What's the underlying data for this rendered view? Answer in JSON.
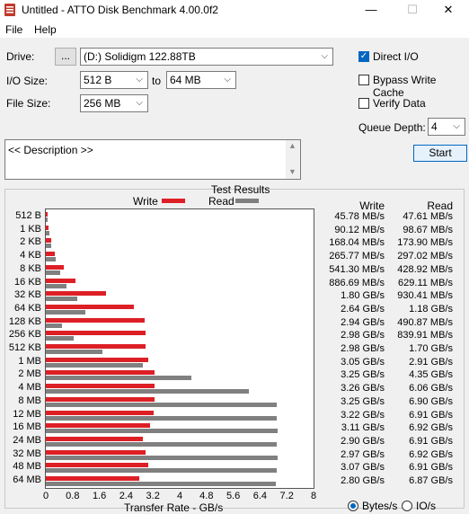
{
  "window": {
    "title": "Untitled - ATTO Disk Benchmark 4.00.0f2",
    "minimize_symbol": "—",
    "maximize_symbol": "☐",
    "close_symbol": "✕"
  },
  "menu": [
    "File",
    "Help"
  ],
  "drive": {
    "label": "Drive:",
    "browse_label": "...",
    "value": "(D:) Solidigm 122.88TB"
  },
  "io_size": {
    "label": "I/O Size:",
    "from": "512 B",
    "to_label": "to",
    "to": "64 MB"
  },
  "file_size": {
    "label": "File Size:",
    "value": "256 MB"
  },
  "options": {
    "direct_io": {
      "label": "Direct I/O",
      "checked": true
    },
    "bypass_write_cache": {
      "label": "Bypass Write Cache",
      "checked": false
    },
    "verify_data": {
      "label": "Verify Data",
      "checked": false
    },
    "queue_depth_label": "Queue Depth:",
    "queue_depth": "4",
    "start_label": "Start"
  },
  "description": {
    "text": "<< Description >>"
  },
  "results": {
    "title": "Test Results",
    "legend_write": "Write",
    "legend_read": "Read",
    "col_write": "Write",
    "col_read": "Read",
    "colors": {
      "write": "#dd1f26",
      "read": "#808080"
    }
  },
  "chart_data": {
    "type": "bar",
    "orientation": "horizontal",
    "title": "Test Results",
    "xlabel": "Transfer Rate - GB/s",
    "xlim": [
      0,
      8
    ],
    "x_ticks": [
      "0",
      "0.8",
      "1.6",
      "2.4",
      "3.2",
      "4",
      "4.8",
      "5.6",
      "6.4",
      "7.2",
      "8"
    ],
    "categories": [
      "512 B",
      "1 KB",
      "2 KB",
      "4 KB",
      "8 KB",
      "16 KB",
      "32 KB",
      "64 KB",
      "128 KB",
      "256 KB",
      "512 KB",
      "1 MB",
      "2 MB",
      "4 MB",
      "8 MB",
      "12 MB",
      "16 MB",
      "24 MB",
      "32 MB",
      "48 MB",
      "64 MB"
    ],
    "series": [
      {
        "name": "Write",
        "values_gbps": [
          0.0458,
          0.0901,
          0.168,
          0.2658,
          0.5413,
          0.8867,
          1.8,
          2.64,
          2.94,
          2.98,
          2.98,
          3.05,
          3.25,
          3.26,
          3.25,
          3.22,
          3.11,
          2.9,
          2.97,
          3.07,
          2.8
        ],
        "labels": [
          "45.78 MB/s",
          "90.12 MB/s",
          "168.04 MB/s",
          "265.77 MB/s",
          "541.30 MB/s",
          "886.69 MB/s",
          "1.80 GB/s",
          "2.64 GB/s",
          "2.94 GB/s",
          "2.98 GB/s",
          "2.98 GB/s",
          "3.05 GB/s",
          "3.25 GB/s",
          "3.26 GB/s",
          "3.25 GB/s",
          "3.22 GB/s",
          "3.11 GB/s",
          "2.90 GB/s",
          "2.97 GB/s",
          "3.07 GB/s",
          "2.80 GB/s"
        ]
      },
      {
        "name": "Read",
        "values_gbps": [
          0.0476,
          0.0987,
          0.1739,
          0.2971,
          0.4289,
          0.6291,
          0.9304,
          1.18,
          0.4909,
          0.8399,
          1.7,
          2.91,
          4.35,
          6.06,
          6.9,
          6.91,
          6.92,
          6.91,
          6.92,
          6.91,
          6.87
        ],
        "labels": [
          "47.61 MB/s",
          "98.67 MB/s",
          "173.90 MB/s",
          "297.02 MB/s",
          "428.92 MB/s",
          "629.11 MB/s",
          "930.41 MB/s",
          "1.18 GB/s",
          "490.87 MB/s",
          "839.91 MB/s",
          "1.70 GB/s",
          "2.91 GB/s",
          "4.35 GB/s",
          "6.06 GB/s",
          "6.90 GB/s",
          "6.91 GB/s",
          "6.92 GB/s",
          "6.91 GB/s",
          "6.92 GB/s",
          "6.91 GB/s",
          "6.87 GB/s"
        ]
      }
    ],
    "grid": false
  },
  "units": {
    "bytes_label": "Bytes/s",
    "io_label": "IO/s",
    "selected": "bytes"
  }
}
